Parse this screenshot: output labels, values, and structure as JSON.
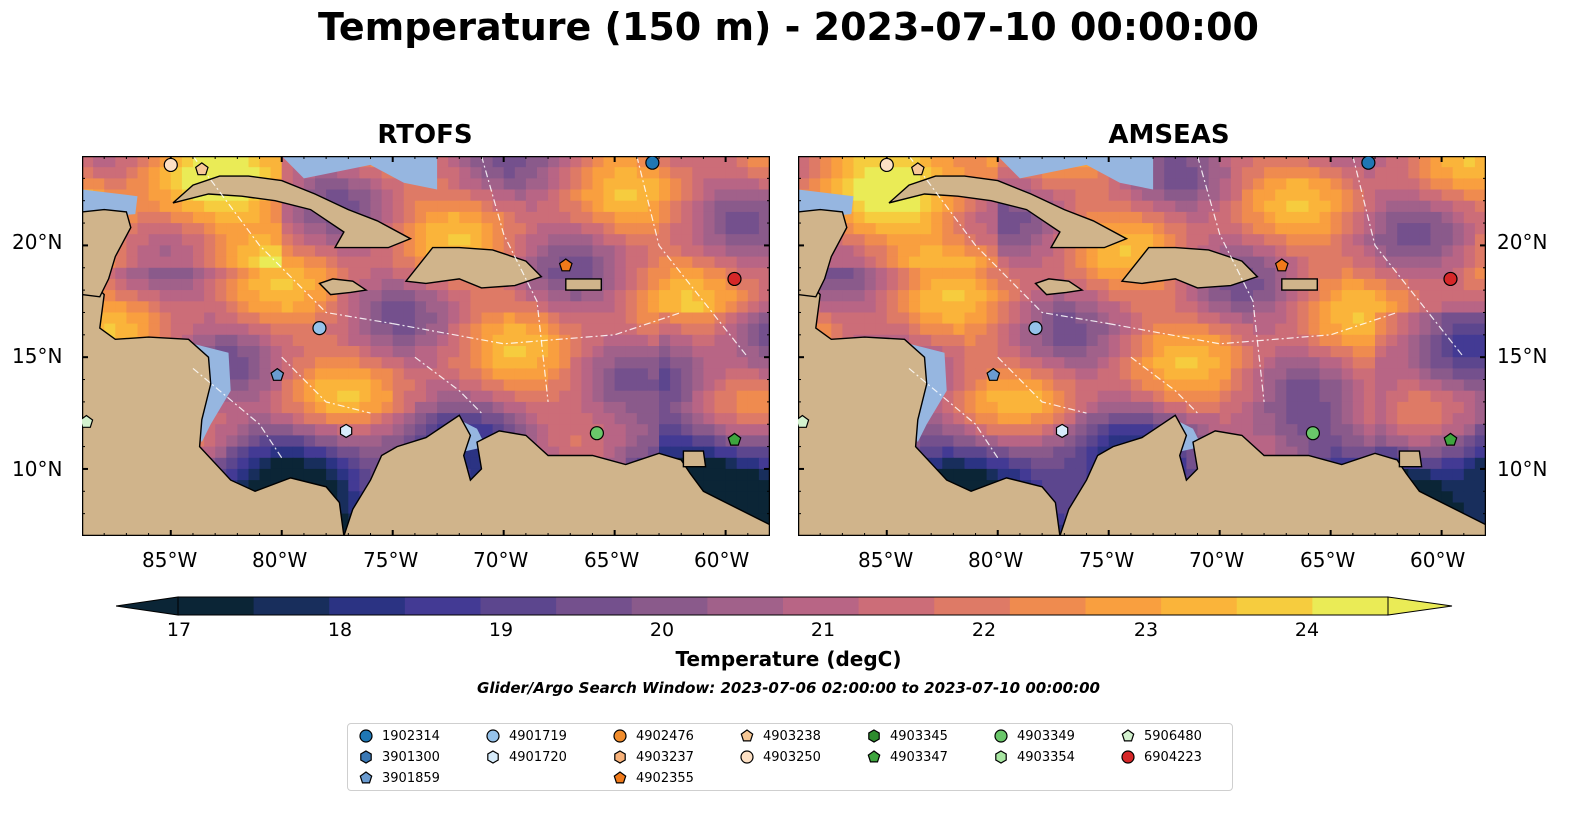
{
  "title": "Temperature (150 m) - 2023-07-10 00:00:00",
  "panels": [
    {
      "title": "RTOFS"
    },
    {
      "title": "AMSEAS"
    }
  ],
  "axes": {
    "lat_labels": [
      "20°N",
      "15°N",
      "10°N"
    ],
    "lon_labels": [
      "85°W",
      "80°W",
      "75°W",
      "70°W",
      "65°W",
      "60°W"
    ],
    "lon_range": [
      -89,
      -58
    ],
    "lat_range": [
      7,
      24
    ]
  },
  "colorbar": {
    "label": "Temperature (degC)",
    "ticks": [
      "17",
      "18",
      "19",
      "20",
      "21",
      "22",
      "23",
      "24"
    ],
    "min": 16.75,
    "max": 24.5,
    "extend": "both",
    "colors": [
      "#0b2536",
      "#182e5c",
      "#2b3383",
      "#433a94",
      "#5c468e",
      "#74508d",
      "#8a5a8b",
      "#a1618a",
      "#b86585",
      "#cc6d78",
      "#de7a66",
      "#ef8b4f",
      "#f99f3f",
      "#fab43a",
      "#f6cc3e",
      "#eaeb56"
    ]
  },
  "search_window": "Glider/Argo Search Window: 2023-07-06 02:00:00 to 2023-07-10 00:00:00",
  "legend": {
    "columns": [
      [
        {
          "id": "1902314",
          "marker": "circle",
          "color": "#1f77b4"
        },
        {
          "id": "3901300",
          "marker": "hexagon",
          "color": "#3a78b4"
        },
        {
          "id": "3901859",
          "marker": "pentagon",
          "color": "#6a9bd0"
        }
      ],
      [
        {
          "id": "4901719",
          "marker": "circle",
          "color": "#95c2ea"
        },
        {
          "id": "4901720",
          "marker": "hexagon",
          "color": "#d7ecfb"
        }
      ],
      [
        {
          "id": "4902476",
          "marker": "circle",
          "color": "#f08c2c"
        },
        {
          "id": "4903237",
          "marker": "hexagon",
          "color": "#f8b27a"
        },
        {
          "id": "4902355",
          "marker": "pentagon",
          "color": "#f07a1a"
        }
      ],
      [
        {
          "id": "4903238",
          "marker": "pentagon",
          "color": "#f7c896"
        },
        {
          "id": "4903250",
          "marker": "circle",
          "color": "#fde0c4"
        }
      ],
      [
        {
          "id": "4903345",
          "marker": "hexagon",
          "color": "#2e8b2e"
        },
        {
          "id": "4903347",
          "marker": "pentagon",
          "color": "#3ea53e"
        }
      ],
      [
        {
          "id": "4903349",
          "marker": "circle",
          "color": "#6ac76a"
        },
        {
          "id": "4903354",
          "marker": "hexagon",
          "color": "#a8e6a2"
        }
      ],
      [
        {
          "id": "5906480",
          "marker": "pentagon",
          "color": "#d3f2cf"
        },
        {
          "id": "6904223",
          "marker": "circle",
          "color": "#d62728"
        }
      ]
    ]
  },
  "map_colors": {
    "land": "#d0b48b",
    "shallow": "#96b6e0",
    "border": "#000000"
  }
}
